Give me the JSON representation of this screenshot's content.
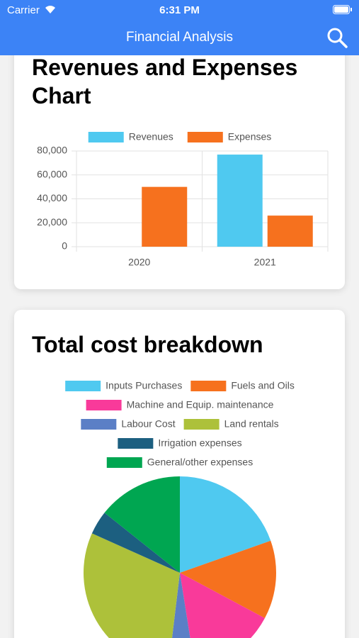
{
  "status_bar": {
    "carrier": "Carrier",
    "time": "6:31 PM"
  },
  "nav_bar": {
    "title": "Financial Analysis"
  },
  "chart_data": [
    {
      "type": "bar",
      "title": "Revenues and Expenses Chart",
      "categories": [
        "2020",
        "2021"
      ],
      "series": [
        {
          "name": "Revenues",
          "color": "#4fc9f0",
          "values": [
            0,
            77000
          ]
        },
        {
          "name": "Expenses",
          "color": "#f6711e",
          "values": [
            50000,
            26000
          ]
        }
      ],
      "ylim": [
        0,
        80000
      ],
      "yticks": [
        0,
        {
          "value": 20000,
          "label": "20,000"
        },
        {
          "value": 40000,
          "label": "40,000"
        },
        {
          "value": 60000,
          "label": "60,000"
        },
        {
          "value": 80000,
          "label": "80,000"
        }
      ],
      "grid": true,
      "legend": "top"
    },
    {
      "type": "pie",
      "title": "Total cost breakdown",
      "categories": [
        "Inputs Purchases",
        "Fuels and Oils",
        "Machine and Equip. maintenance",
        "Labour Cost",
        "Land rentals",
        "Irrigation expenses",
        "General/other expenses"
      ],
      "values": [
        19.6,
        13.2,
        14.7,
        4.4,
        29.8,
        4,
        14.3
      ],
      "colors": [
        "#4fc9f0",
        "#f6711e",
        "#f93a9a",
        "#5b7fc6",
        "#adc13a",
        "#1c5f80",
        "#00a651"
      ],
      "legend": "top"
    }
  ]
}
